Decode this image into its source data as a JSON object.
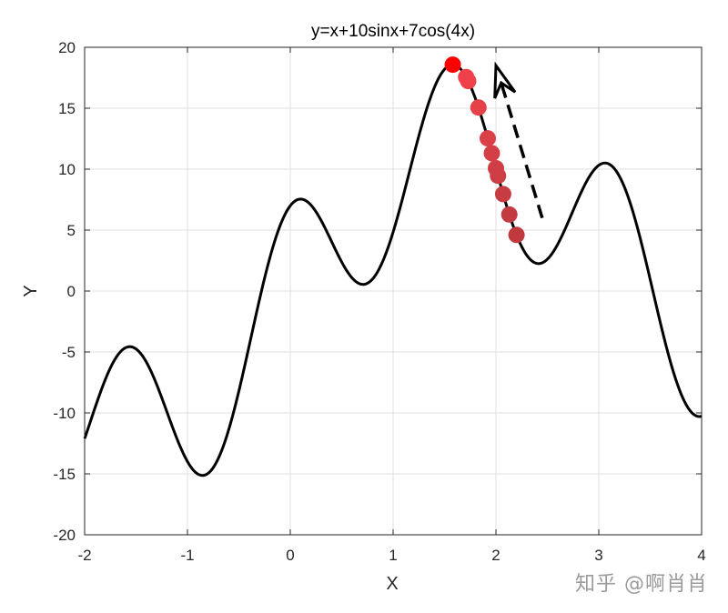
{
  "watermark": "知乎 @啊肖肖",
  "chart_data": {
    "type": "line",
    "title": "y=x+10sinx+7cos(4x)",
    "xlabel": "X",
    "ylabel": "Y",
    "xlim": [
      -2,
      4
    ],
    "ylim": [
      -20,
      20
    ],
    "xticks": [
      -2,
      -1,
      0,
      1,
      2,
      3,
      4
    ],
    "yticks": [
      -20,
      -15,
      -10,
      -5,
      0,
      5,
      10,
      15,
      20
    ],
    "grid": true,
    "series": [
      {
        "function": "x + 10*sin(x) + 7*cos(4*x)",
        "color": "#000000",
        "x_range": [
          -2,
          4
        ]
      }
    ],
    "descent_points": {
      "x": [
        2.2,
        2.13,
        2.07,
        2.02,
        2.0,
        1.96,
        1.92,
        1.83,
        1.73,
        1.71,
        1.58
      ],
      "colors": [
        "#c0393f",
        "#c23b40",
        "#c63c42",
        "#cc3d44",
        "#d03e45",
        "#d43f46",
        "#da4047",
        "#e44248",
        "#ec4149",
        "#f0404a",
        "#ff0000"
      ]
    },
    "arrow": {
      "from": [
        2.45,
        6
      ],
      "to": [
        2.0,
        18.5
      ],
      "style": "dashed",
      "color": "#000000"
    }
  }
}
